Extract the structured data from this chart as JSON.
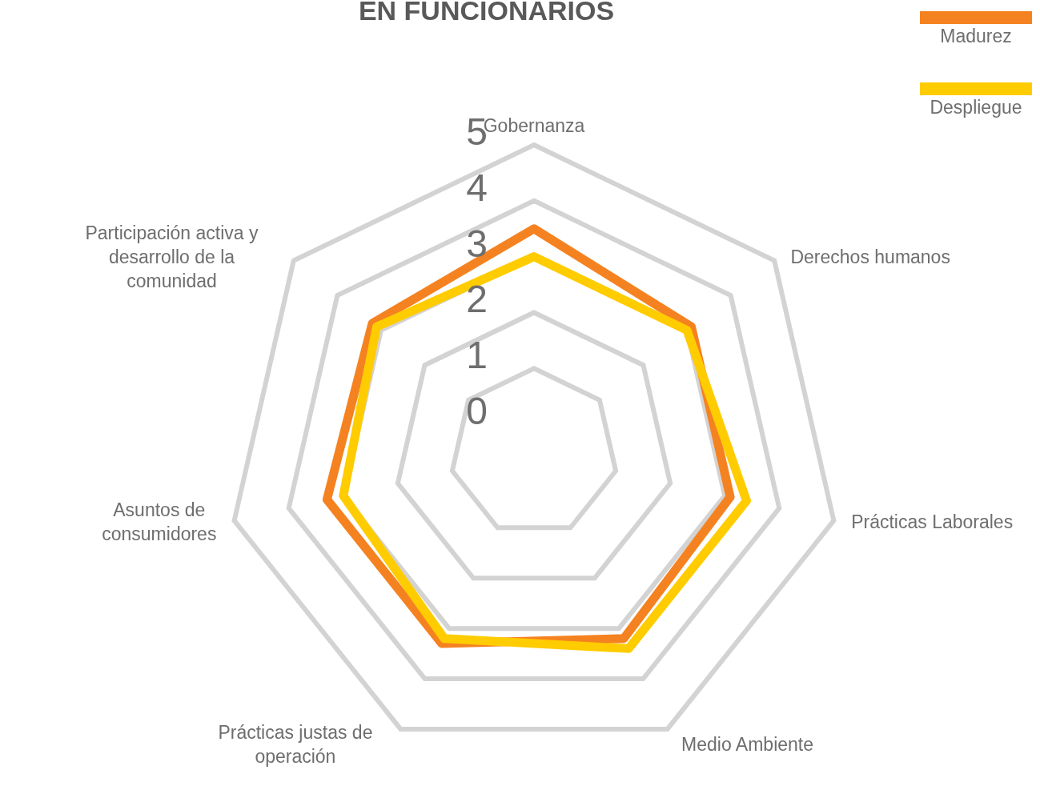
{
  "chart_data": {
    "type": "radar",
    "title": "EN FUNCIONARIOS",
    "categories": [
      "Gobernanza",
      "Derechos humanos",
      "Prácticas Laborales",
      "Medio Ambiente",
      "Prácticas justas de operación",
      "Asuntos de consumidores",
      "Participación activa y desarrollo de la comunidad"
    ],
    "series": [
      {
        "name": "Madurez",
        "color": "#f58220",
        "values": [
          3.5,
          3.1,
          3.1,
          3.2,
          3.3,
          3.3,
          3.2
        ]
      },
      {
        "name": "Despliegue",
        "color": "#ffcc00",
        "values": [
          3.0,
          3.0,
          3.4,
          3.4,
          3.2,
          3.0,
          3.1
        ]
      }
    ],
    "ylim": [
      -0.5,
      5
    ],
    "yticks": [
      0,
      1,
      2,
      3,
      4,
      5
    ],
    "grid": true,
    "legend": "top right"
  }
}
